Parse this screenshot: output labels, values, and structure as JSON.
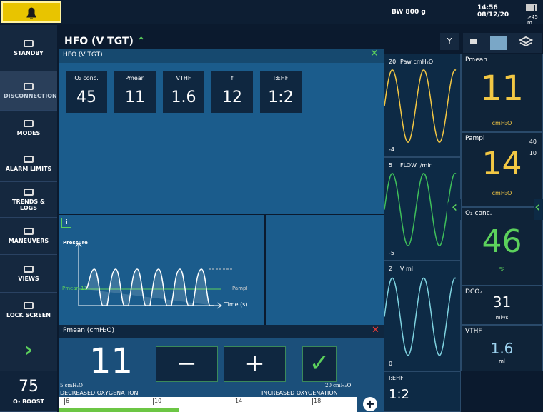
{
  "topbar": {
    "patient": "BW 800 g",
    "time": "14:56",
    "date": "08/12/20",
    "battery": ">45 m"
  },
  "sidebar": {
    "items": [
      "STANDBY",
      "DISCONNECTION",
      "MODES",
      "ALARM LIMITS",
      "TRENDS & LOGS",
      "MANEUVERS",
      "VIEWS",
      "LOCK SCREEN"
    ],
    "o2_boost_value": "75",
    "o2_boost_label": "O₂ BOOST"
  },
  "mode": {
    "title": "HFO (V TGT)",
    "y_button": "Y"
  },
  "dialog": {
    "title": "HFO (V TGT)",
    "params": [
      {
        "label": "O₂ conc.",
        "value": "45"
      },
      {
        "label": "Pmean",
        "value": "11"
      },
      {
        "label": "VTHF",
        "value": "1.6"
      },
      {
        "label": "f",
        "value": "12"
      },
      {
        "label": "I:EHF",
        "value": "1:2"
      }
    ]
  },
  "info": {
    "icon": "i",
    "pressure": "Pressure",
    "time": "Time (s)",
    "pmean": "Pmean 11",
    "pampl": "Pampl"
  },
  "adjust": {
    "title": "Pmean (cmH₂O)",
    "value": "11",
    "minus": "−",
    "plus": "+",
    "min_label": "5 cmH₂O",
    "max_label": "20 cmH₂O",
    "left_text": "DECREASED OXYGENATION",
    "right_text": "INCREASED OXYGENATION",
    "ticks": [
      "6",
      "10",
      "14",
      "18"
    ]
  },
  "waveforms": [
    {
      "label": "Paw cmH₂O",
      "top": "20",
      "bottom": "-4"
    },
    {
      "label": "FLOW l/min",
      "top": "5",
      "bottom": "-5"
    },
    {
      "label": "V ml",
      "top": "2",
      "bottom": "0"
    }
  ],
  "ie": {
    "label": "I:EHF",
    "value": "1:2"
  },
  "monitor": {
    "pmean": {
      "label": "Pmean",
      "value": "11",
      "unit": "cmH₂O"
    },
    "pampl": {
      "label": "Pampl",
      "high": "40",
      "low": "10",
      "value": "14",
      "unit": "cmH₂O"
    },
    "o2": {
      "label": "O₂ conc.",
      "value": "46",
      "unit": "%"
    },
    "dco2": {
      "label": "DCO₂",
      "value": "31",
      "unit": "ml²/s"
    },
    "vthf": {
      "label": "VTHF",
      "value": "1.6",
      "unit": "ml"
    }
  }
}
